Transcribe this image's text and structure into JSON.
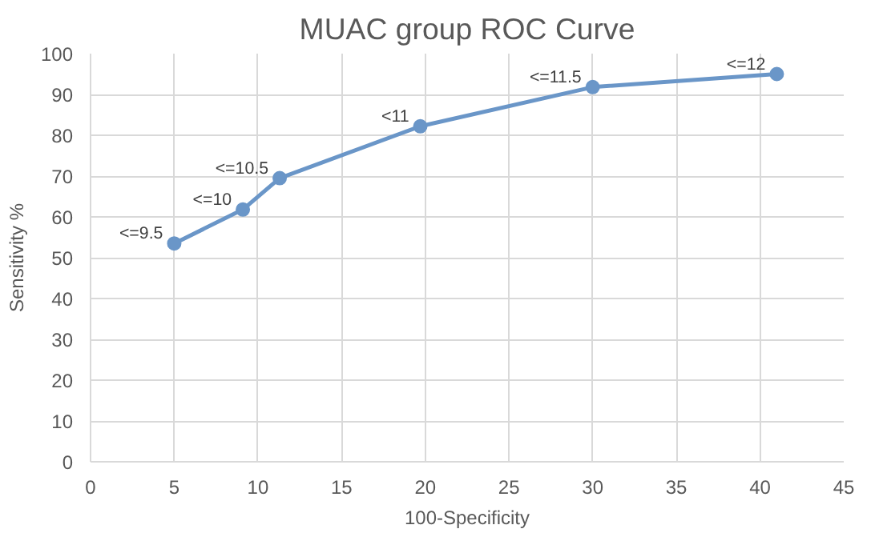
{
  "chart_data": {
    "type": "line",
    "title": "MUAC group ROC Curve",
    "xlabel": "100-Specificity",
    "ylabel": "Sensitivity %",
    "x": [
      5,
      9.1,
      11.3,
      19.7,
      30,
      41
    ],
    "series": [
      {
        "color": "#6a96c8",
        "values": [
          53.5,
          61.8,
          69.5,
          82.2,
          91.8,
          95
        ]
      }
    ],
    "marker": "circle",
    "line_style": "solid",
    "grid": true,
    "xlim": [
      0,
      45
    ],
    "xticks": [
      0,
      5,
      10,
      15,
      20,
      25,
      30,
      35,
      40,
      45
    ],
    "ylim": [
      0,
      100
    ],
    "yticks": [
      0,
      10,
      20,
      30,
      40,
      50,
      60,
      70,
      80,
      90,
      100
    ],
    "annotations": [
      {
        "text": "<=9.5",
        "x": 5,
        "y": 53.5
      },
      {
        "text": "<=10",
        "x": 9.1,
        "y": 61.8
      },
      {
        "text": "<=10.5",
        "x": 11.3,
        "y": 69.5
      },
      {
        "text": "<11",
        "x": 19.7,
        "y": 82.2
      },
      {
        "text": "<=11.5",
        "x": 30,
        "y": 91.8
      },
      {
        "text": "<=12",
        "x": 41,
        "y": 95
      }
    ]
  }
}
